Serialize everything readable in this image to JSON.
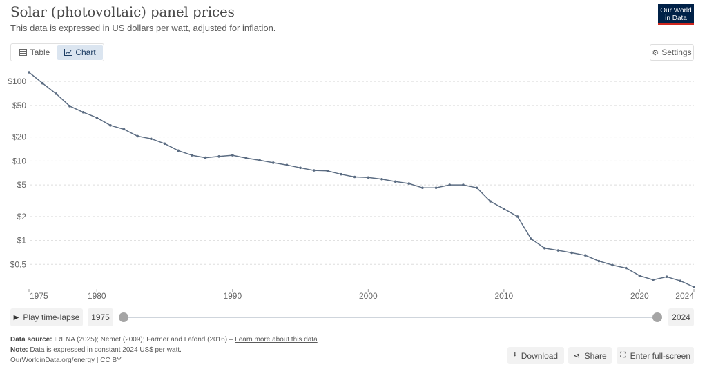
{
  "header": {
    "title": "Solar (photovoltaic) panel prices",
    "subtitle": "This data is expressed in US dollars per watt, adjusted for inflation.",
    "logo_line1": "Our World",
    "logo_line2": "in Data"
  },
  "tabs": [
    {
      "label": "Table",
      "icon": "table-icon",
      "active": false
    },
    {
      "label": "Chart",
      "icon": "line-chart-icon",
      "active": true
    }
  ],
  "settings_label": "Settings",
  "timeline": {
    "play_label": "Play time-lapse",
    "start_year": "1975",
    "end_year": "2024"
  },
  "footer": {
    "source_label": "Data source:",
    "source_text": " IRENA (2025); Nemet (2009); Farmer and Lafond (2016) – ",
    "learn_more": "Learn more about this data",
    "note_label": "Note:",
    "note_text": " Data is expressed in constant 2024 US$ per watt.",
    "url_license": "OurWorldinData.org/energy | CC BY"
  },
  "buttons": {
    "download": "Download",
    "share": "Share",
    "fullscreen": "Enter full-screen"
  },
  "colors": {
    "line": "#5b6c82",
    "grid": "#dddddd",
    "accent": "#002147",
    "logo_underline": "#ce261e"
  },
  "chart_data": {
    "type": "line",
    "scale_y": "log",
    "grid": "horizontal dashed",
    "x": [
      1975,
      1976,
      1977,
      1978,
      1979,
      1980,
      1981,
      1982,
      1983,
      1984,
      1985,
      1986,
      1987,
      1988,
      1989,
      1990,
      1991,
      1992,
      1993,
      1994,
      1995,
      1996,
      1997,
      1998,
      1999,
      2000,
      2001,
      2002,
      2003,
      2004,
      2005,
      2006,
      2007,
      2008,
      2009,
      2010,
      2011,
      2012,
      2013,
      2014,
      2015,
      2016,
      2017,
      2018,
      2019,
      2020,
      2021,
      2022,
      2023,
      2024
    ],
    "series": [
      {
        "values": [
          130,
          95,
          70,
          49,
          41,
          35,
          28,
          25,
          20.5,
          19,
          16.5,
          13.5,
          11.8,
          11,
          11.4,
          11.8,
          10.9,
          10.2,
          9.5,
          8.9,
          8.2,
          7.6,
          7.5,
          6.8,
          6.3,
          6.2,
          5.9,
          5.5,
          5.2,
          4.6,
          4.6,
          5.0,
          5.0,
          4.6,
          3.1,
          2.5,
          2.0,
          1.05,
          0.8,
          0.75,
          0.7,
          0.65,
          0.55,
          0.49,
          0.45,
          0.36,
          0.32,
          0.35,
          0.31,
          0.26
        ]
      }
    ],
    "y_ticks": [
      0.5,
      1,
      2,
      5,
      10,
      20,
      50,
      100
    ],
    "y_tick_labels": [
      "$0.5",
      "$1",
      "$2",
      "$5",
      "$10",
      "$20",
      "$50",
      "$100"
    ],
    "x_ticks": [
      1975,
      1980,
      1990,
      2000,
      2010,
      2020,
      2024
    ],
    "x_tick_labels": [
      "1975",
      "1980",
      "1990",
      "2000",
      "2010",
      "2020",
      "2024"
    ],
    "xlim": [
      1975,
      2024
    ],
    "ylim": [
      0.25,
      130
    ],
    "xlabel": "",
    "ylabel": ""
  }
}
